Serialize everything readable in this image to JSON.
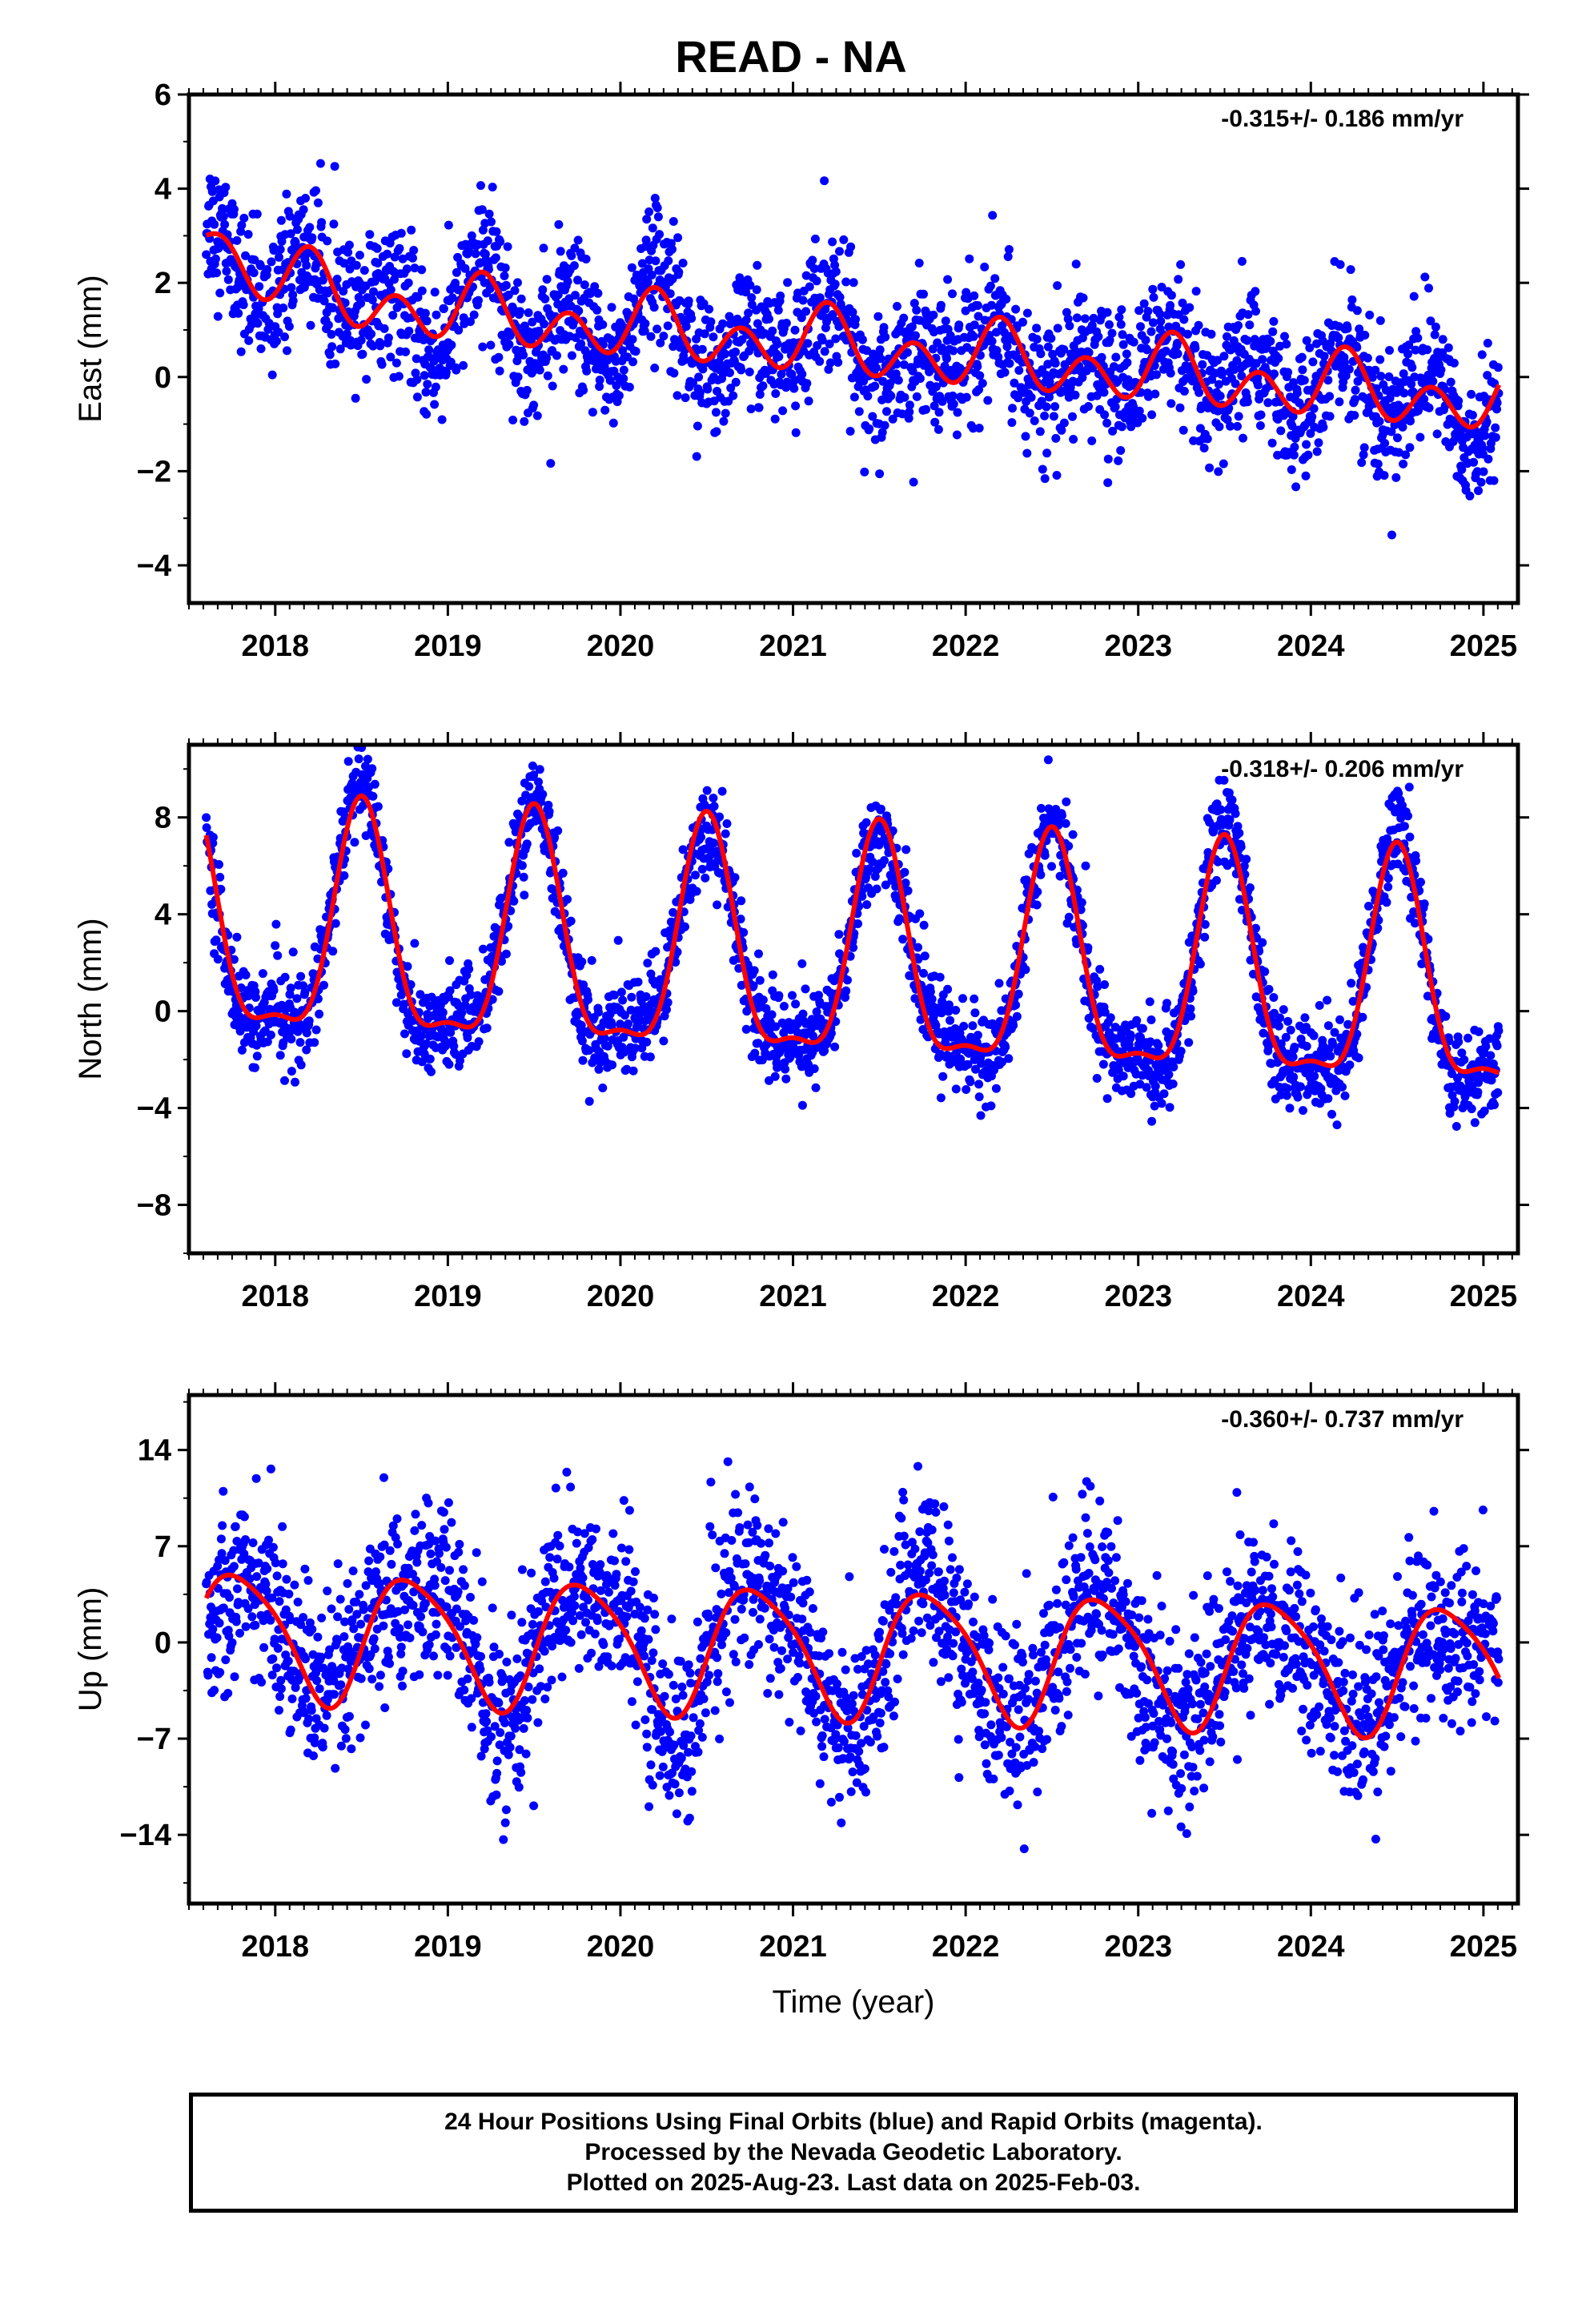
{
  "title": "READ - NA",
  "footer": {
    "line1": "24 Hour Positions Using Final Orbits (blue) and Rapid Orbits (magenta).",
    "line2": "Processed by the Nevada Geodetic Laboratory.",
    "line3": "Plotted on 2025-Aug-23. Last data on 2025-Feb-03."
  },
  "colors": {
    "data": "#0000ff",
    "model": "#ff0000",
    "axis": "#000000"
  },
  "chart_data": [
    {
      "type": "scatter",
      "ylabel": "East (mm)",
      "xlabel": "",
      "annotation": "-0.315+/- 0.186 mm/yr",
      "xlim": [
        2017.5,
        2025.2
      ],
      "ylim": [
        -4.8,
        6.0
      ],
      "yticks": [
        -4,
        -2,
        0,
        2,
        4,
        6
      ],
      "xticks": [
        2018,
        2019,
        2020,
        2021,
        2022,
        2023,
        2024,
        2025
      ],
      "data_start": 2017.6,
      "data_end": 2025.09,
      "model": {
        "trend_mm_per_yr": -0.315,
        "offset_mm": 0.75,
        "annual_amp": 0.35,
        "annual_phase": 0.2,
        "semiannual_amp": 0.55,
        "semiannual_phase": 0.7,
        "transient_amp": 1.3,
        "transient_tau": 0.35
      },
      "series": [
        {
          "name": "24 Hour Positions (Final Orbits)",
          "scatter_sd": 0.9
        },
        {
          "name": "Model fit",
          "style": "line"
        }
      ]
    },
    {
      "type": "scatter",
      "ylabel": "North (mm)",
      "xlabel": "",
      "annotation": "-0.318+/- 0.206 mm/yr",
      "xlim": [
        2017.5,
        2025.2
      ],
      "ylim": [
        -10,
        11
      ],
      "yticks": [
        -8,
        -4,
        0,
        4,
        8
      ],
      "xticks": [
        2018,
        2019,
        2020,
        2021,
        2022,
        2023,
        2024,
        2025
      ],
      "data_start": 2017.6,
      "data_end": 2025.09,
      "model": {
        "trend_mm_per_yr": -0.318,
        "offset_mm": 2.0,
        "annual_amp": 4.6,
        "annual_phase": 0.5,
        "semiannual_amp": 1.5,
        "semiannual_phase": 0.5,
        "transient_amp": 0,
        "transient_tau": 1
      },
      "series": [
        {
          "name": "24 Hour Positions (Final Orbits)",
          "scatter_sd": 1.2
        },
        {
          "name": "Model fit",
          "style": "line"
        }
      ]
    },
    {
      "type": "scatter",
      "ylabel": "Up (mm)",
      "xlabel": "Time (year)",
      "annotation": "-0.360+/- 0.737 mm/yr",
      "xlim": [
        2017.5,
        2025.2
      ],
      "ylim": [
        -19,
        18
      ],
      "yticks": [
        -14,
        -7,
        0,
        7,
        14
      ],
      "xticks": [
        2018,
        2019,
        2020,
        2021,
        2022,
        2023,
        2024,
        2025
      ],
      "data_start": 2017.6,
      "data_end": 2025.09,
      "model": {
        "trend_mm_per_yr": -0.36,
        "offset_mm": -0.5,
        "annual_amp": 4.6,
        "annual_phase": 0.79,
        "semiannual_amp": 0.8,
        "semiannual_phase": 0.6,
        "transient_amp": 0,
        "transient_tau": 1
      },
      "series": [
        {
          "name": "24 Hour Positions (Final Orbits)",
          "scatter_sd": 4.0
        },
        {
          "name": "Model fit",
          "style": "line"
        }
      ]
    }
  ]
}
